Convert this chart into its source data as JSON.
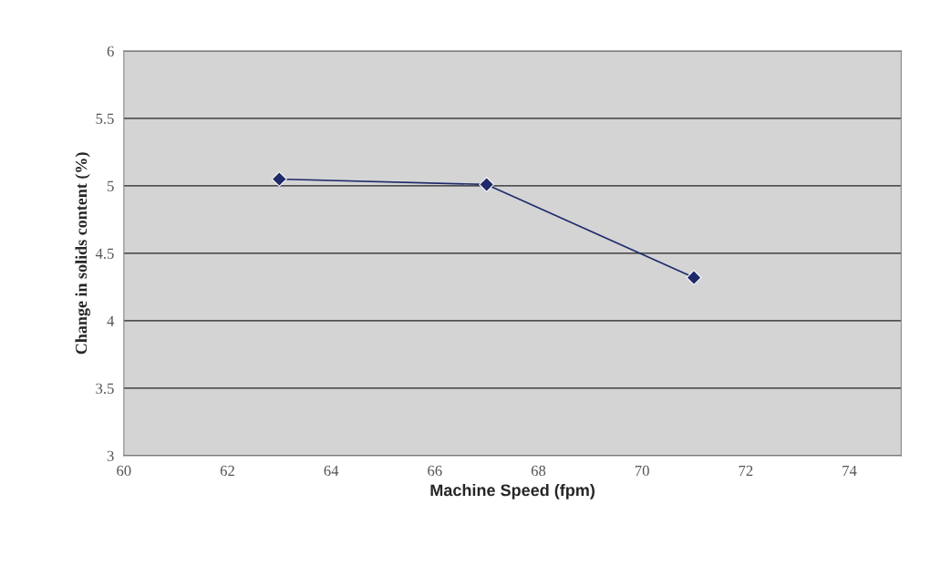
{
  "chart_data": {
    "type": "line",
    "xlabel": "Machine Speed (fpm)",
    "ylabel": "Change in solids content (%)",
    "x": [
      63,
      67,
      71
    ],
    "series": [
      {
        "color": "#1f2a6b",
        "values": [
          5.05,
          5.01,
          4.32
        ]
      }
    ],
    "xlim": [
      60,
      75
    ],
    "xticks": [
      60,
      62,
      64,
      66,
      68,
      70,
      72,
      74
    ],
    "ylim": [
      3,
      6
    ],
    "yticks": [
      3,
      3.5,
      4,
      4.5,
      5,
      5.5,
      6
    ],
    "grid": "y",
    "marker": "diamond",
    "line_style": "solid"
  }
}
